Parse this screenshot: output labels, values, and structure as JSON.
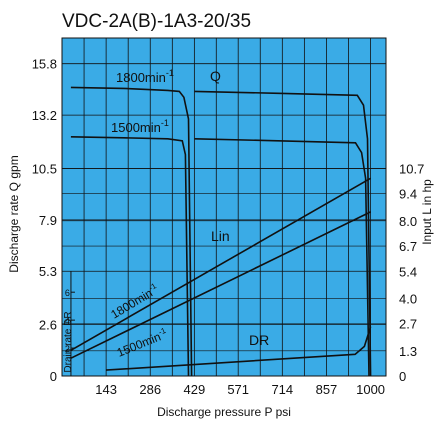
{
  "chart_data": {
    "type": "line",
    "title": "VDC-2A(B)-1A3-20/35",
    "xlabel": "Discharge pressure P psi",
    "ylabel": "Discharge rate Q gpm",
    "ylabel_right": "Input L in hp",
    "ylabel_drain": "Drain rate DR",
    "xlim": [
      0,
      1050
    ],
    "ylim": [
      0,
      17.1
    ],
    "x_ticks": [
      "143",
      "286",
      "429",
      "571",
      "714",
      "857",
      "1000"
    ],
    "x_tick_values": [
      143,
      286,
      429,
      571,
      714,
      857,
      1000
    ],
    "y_ticks": [
      "0",
      "2.6",
      "5.3",
      "7.9",
      "10.5",
      "13.2",
      "15.8"
    ],
    "y_tick_values": [
      0,
      2.6,
      5.3,
      7.9,
      10.5,
      13.2,
      15.8
    ],
    "y_right_ticks": [
      "0",
      "1.3",
      "2.7",
      "4.0",
      "5.4",
      "6.7",
      "8.0",
      "9.4",
      "10.7"
    ],
    "y_right_tick_values": [
      0,
      1.3,
      2.7,
      4.0,
      5.4,
      6.7,
      8.0,
      9.4,
      10.7
    ],
    "drain_ticks": [
      "2",
      "4",
      "6"
    ],
    "drain_tick_values": [
      2,
      4,
      6
    ],
    "grid": true,
    "background_color": "#3aabe6",
    "grid_color": "#111111",
    "line_color": "#111111",
    "labels": {
      "q": "Q",
      "lin": "Lin",
      "dr": "DR",
      "q_1800": "1800min",
      "q_1500": "1500min",
      "l_1800": "1800min",
      "l_1500": "1500min",
      "superscript": "-1"
    },
    "series": [
      {
        "name": "Q 1800min-1",
        "x": [
          29,
          200,
          343,
          380,
          395,
          410,
          420
        ],
        "y": [
          14.6,
          14.55,
          14.45,
          14.4,
          14.1,
          13.0,
          0
        ]
      },
      {
        "name": "Q 1500min-1",
        "x": [
          29,
          200,
          343,
          390,
          400,
          410
        ],
        "y": [
          12.1,
          12.05,
          12.0,
          11.9,
          11.2,
          0
        ]
      },
      {
        "name": "Q 1800min-1 (rated)",
        "x": [
          430,
          700,
          957,
          977,
          990,
          1000
        ],
        "y": [
          14.4,
          14.3,
          14.2,
          13.7,
          12.0,
          0
        ]
      },
      {
        "name": "Q 1500min-1 (rated)",
        "x": [
          430,
          700,
          951,
          971,
          984,
          995
        ],
        "y": [
          12.0,
          11.9,
          11.8,
          11.3,
          10.0,
          0
        ]
      },
      {
        "name": "Lin 1800min-1",
        "x": [
          29,
          1000
        ],
        "y": [
          1.3,
          10.0
        ]
      },
      {
        "name": "Lin 1500min-1",
        "x": [
          29,
          1000
        ],
        "y": [
          0.9,
          8.3
        ]
      },
      {
        "name": "DR",
        "x": [
          143,
          950,
          980,
          1000
        ],
        "y": [
          0.3,
          1.1,
          1.5,
          2.5
        ]
      }
    ]
  }
}
